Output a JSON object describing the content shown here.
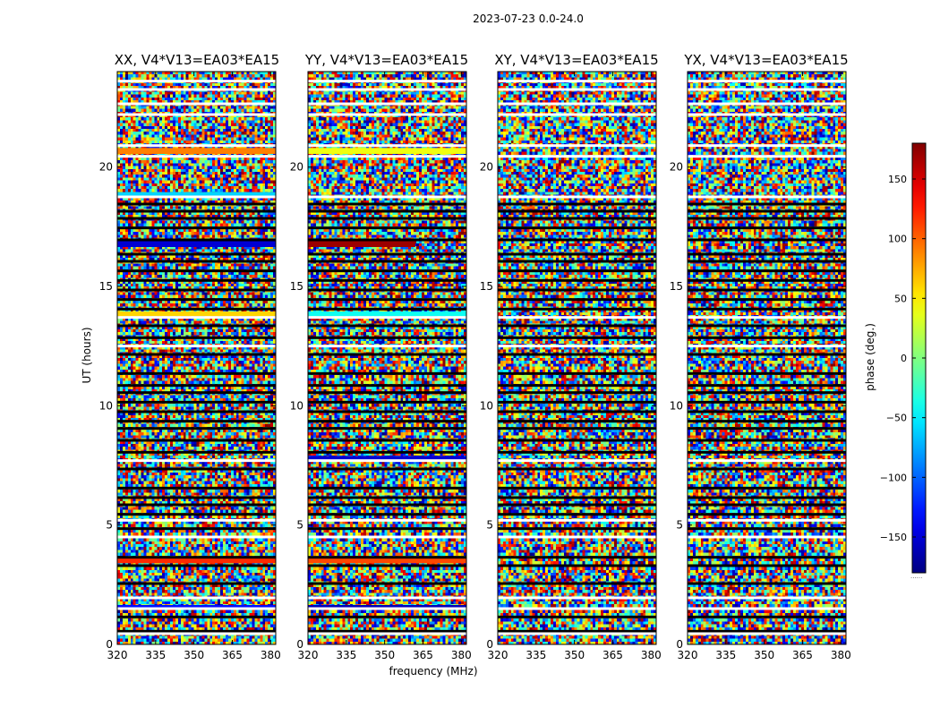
{
  "chart_data": {
    "type": "heatmap",
    "suptitle": "2023-07-23 0.0-24.0",
    "xlabel": "frequency (MHz)",
    "ylabel": "UT (hours)",
    "xlim": [
      320,
      382
    ],
    "ylim": [
      0,
      24
    ],
    "xticks": [
      320,
      335,
      350,
      365,
      380
    ],
    "xtick_labels": [
      "320",
      "335",
      "350",
      "365",
      "380"
    ],
    "yticks": [
      0,
      5,
      10,
      15,
      20
    ],
    "ytick_labels": [
      "0",
      "5",
      "10",
      "15",
      "20"
    ],
    "colorbar": {
      "label": "phase (deg.)",
      "range": [
        -180,
        180
      ],
      "colormap": "jet",
      "ticks": [
        -150,
        -100,
        -50,
        0,
        50,
        100,
        150
      ],
      "tick_labels": [
        "−150",
        "−100",
        "−50",
        "0",
        "50",
        "100",
        "150"
      ],
      "under_label": "......"
    },
    "panels": [
      {
        "title": "XX, V4*V13=EA03*EA15",
        "pol": "XX"
      },
      {
        "title": "YY, V4*V13=EA03*EA15",
        "pol": "YY"
      },
      {
        "title": "XY, V4*V13=EA03*EA15",
        "pol": "XY"
      },
      {
        "title": "YX, V4*V13=EA03*EA15",
        "pol": "YX"
      }
    ],
    "white_gap_times_hours": [
      0.45,
      1.5,
      1.95,
      4.5,
      5.2,
      7.7,
      12.5,
      13.7,
      18.75,
      20.45,
      20.9,
      22.2,
      22.65,
      23.25,
      23.6
    ],
    "black_flag_times_hours": [
      0.55,
      1.15,
      2.55,
      3.3,
      3.65,
      4.85,
      5.45,
      5.85,
      6.15,
      6.55,
      7.35,
      8.05,
      8.55,
      9.05,
      9.35,
      9.75,
      10.15,
      10.55,
      10.85,
      11.35,
      12.15,
      12.85,
      13.35,
      14.05,
      14.45,
      14.85,
      15.25,
      15.65,
      16.05,
      16.35,
      16.95,
      17.45,
      17.85,
      18.15,
      18.45
    ],
    "coherent_bands": [
      {
        "pol": "XX",
        "t_start": 16.65,
        "t_end": 16.95,
        "phase_deg": -150,
        "f_end": 382
      },
      {
        "pol": "YY",
        "t_start": 16.65,
        "t_end": 16.95,
        "phase_deg": 170,
        "f_end": 362
      },
      {
        "pol": "XX",
        "t_start": 3.4,
        "t_end": 3.6,
        "phase_deg": 120,
        "f_end": 382
      },
      {
        "pol": "YY",
        "t_start": 3.4,
        "t_end": 3.6,
        "phase_deg": 110,
        "f_end": 382
      },
      {
        "pol": "XX",
        "t_start": 20.55,
        "t_end": 20.8,
        "phase_deg": 90,
        "f_end": 382
      },
      {
        "pol": "YY",
        "t_start": 20.55,
        "t_end": 20.8,
        "phase_deg": 40,
        "f_end": 382
      },
      {
        "pol": "XX",
        "t_start": 13.75,
        "t_end": 13.95,
        "phase_deg": 60,
        "f_end": 382
      },
      {
        "pol": "YY",
        "t_start": 13.75,
        "t_end": 13.95,
        "phase_deg": -40,
        "f_end": 382
      },
      {
        "pol": "XX",
        "t_start": 1.5,
        "t_end": 1.65,
        "phase_deg": -130,
        "f_end": 382
      },
      {
        "pol": "YY",
        "t_start": 1.5,
        "t_end": 1.65,
        "phase_deg": -160,
        "f_end": 382
      },
      {
        "pol": "YY",
        "t_start": 7.7,
        "t_end": 7.9,
        "phase_deg": -150,
        "f_end": 382
      },
      {
        "pol": "XX",
        "t_start": 18.8,
        "t_end": 18.95,
        "phase_deg": -60,
        "f_end": 382
      }
    ]
  }
}
